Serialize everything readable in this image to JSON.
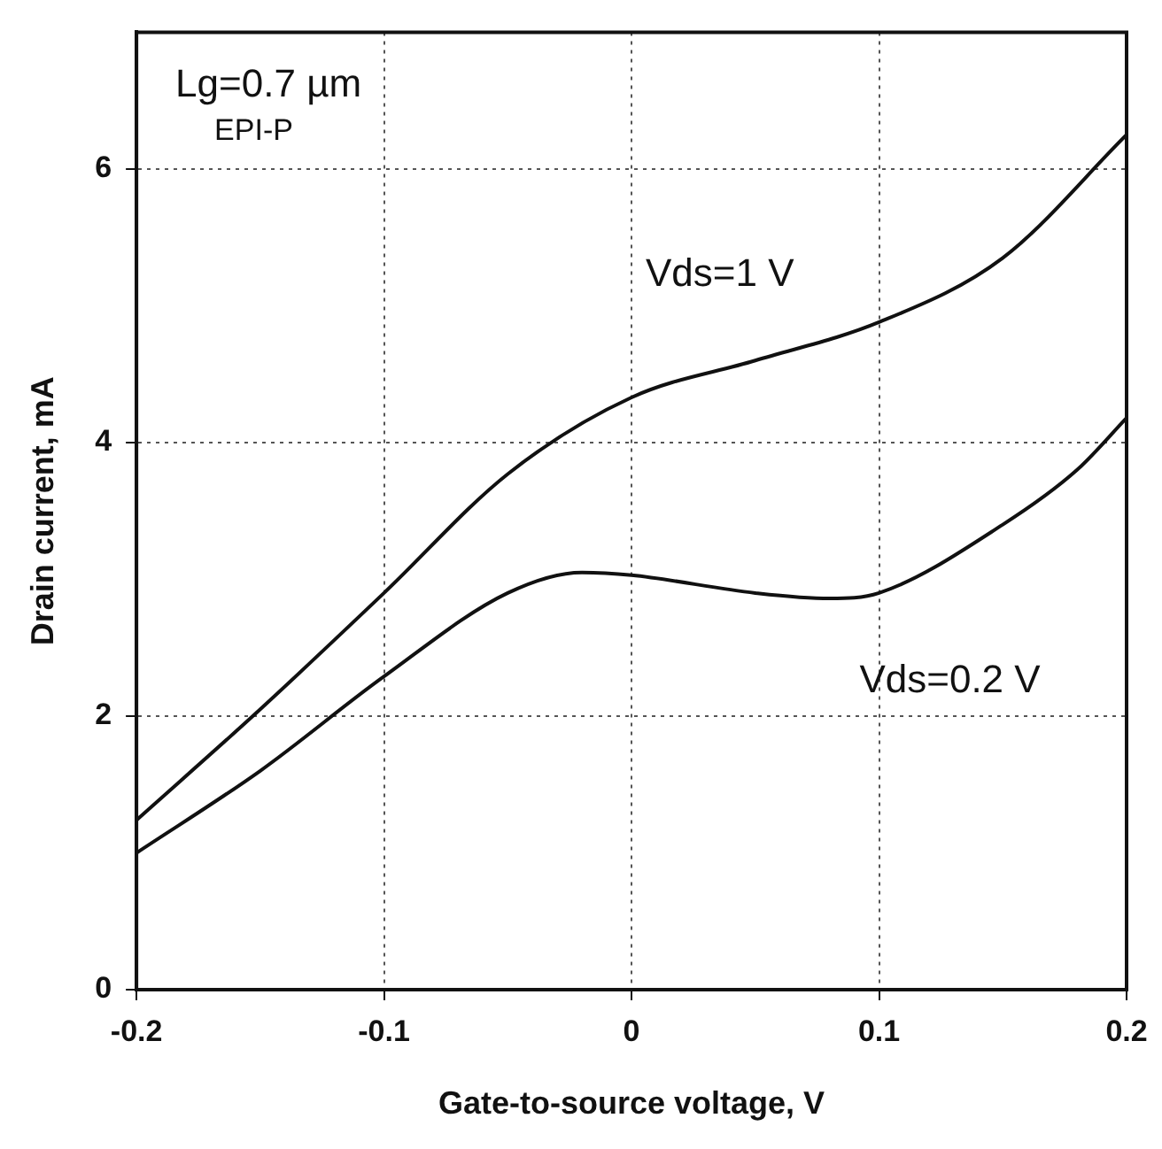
{
  "chart_data": {
    "type": "line",
    "xlabel": "Gate-to-source voltage, V",
    "ylabel": "Drain current, mA",
    "series": [
      {
        "name": "Vds=1 V",
        "color": "#111111",
        "x": [
          -0.2,
          -0.15,
          -0.1,
          -0.05,
          0,
          0.05,
          0.1,
          0.15,
          0.2
        ],
        "values": [
          1.24,
          2.05,
          2.9,
          3.77,
          4.33,
          4.6,
          4.88,
          5.35,
          6.25
        ]
      },
      {
        "name": "Vds=0.2 V",
        "color": "#111111",
        "x": [
          -0.2,
          -0.15,
          -0.1,
          -0.05,
          -0.02,
          0,
          0.05,
          0.08,
          0.1,
          0.15,
          0.18,
          0.2
        ],
        "values": [
          1.0,
          1.6,
          2.29,
          2.9,
          3.05,
          3.03,
          2.9,
          2.86,
          2.9,
          3.4,
          3.8,
          4.18
        ]
      }
    ],
    "xlim": [
      -0.2,
      0.2
    ],
    "xticks": [
      -0.2,
      -0.1,
      0,
      0.1,
      0.2
    ],
    "ylim": [
      0,
      7
    ],
    "yticks": [
      0,
      2,
      4,
      6
    ],
    "grid": true,
    "legend": false,
    "marker": "none",
    "line_style": "solid",
    "annotations": [
      "Lg=0.7 µm",
      "EPI-P"
    ]
  }
}
